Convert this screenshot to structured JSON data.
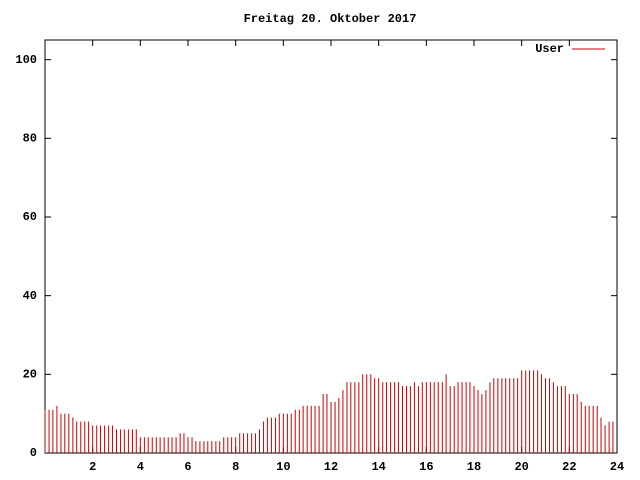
{
  "chart_data": {
    "type": "impulse",
    "title": "Freitag 20. Oktober 2017",
    "x": [
      0,
      0.17,
      0.33,
      0.5,
      0.67,
      0.83,
      1,
      1.17,
      1.33,
      1.5,
      1.67,
      1.83,
      2,
      2.17,
      2.33,
      2.5,
      2.67,
      2.83,
      3,
      3.17,
      3.33,
      3.5,
      3.67,
      3.83,
      4,
      4.17,
      4.33,
      4.5,
      4.67,
      4.83,
      5,
      5.17,
      5.33,
      5.5,
      5.67,
      5.83,
      6,
      6.17,
      6.33,
      6.5,
      6.67,
      6.83,
      7,
      7.17,
      7.33,
      7.5,
      7.67,
      7.83,
      8,
      8.17,
      8.33,
      8.5,
      8.67,
      8.83,
      9,
      9.17,
      9.33,
      9.5,
      9.67,
      9.83,
      10,
      10.17,
      10.33,
      10.5,
      10.67,
      10.83,
      11,
      11.17,
      11.33,
      11.5,
      11.67,
      11.83,
      12,
      12.17,
      12.33,
      12.5,
      12.67,
      12.83,
      13,
      13.17,
      13.33,
      13.5,
      13.67,
      13.83,
      14,
      14.17,
      14.33,
      14.5,
      14.67,
      14.83,
      15,
      15.17,
      15.33,
      15.5,
      15.67,
      15.83,
      16,
      16.17,
      16.33,
      16.5,
      16.67,
      16.83,
      17,
      17.17,
      17.33,
      17.5,
      17.67,
      17.83,
      18,
      18.17,
      18.33,
      18.5,
      18.67,
      18.83,
      19,
      19.17,
      19.33,
      19.5,
      19.67,
      19.83,
      20,
      20.17,
      20.33,
      20.5,
      20.67,
      20.83,
      21,
      21.17,
      21.33,
      21.5,
      21.67,
      21.83,
      22,
      22.17,
      22.33,
      22.5,
      22.67,
      22.83,
      23,
      23.17,
      23.33,
      23.5,
      23.67,
      23.83
    ],
    "series": [
      {
        "name": "User",
        "color": "#cc0000",
        "values": [
          11,
          11,
          11,
          12,
          10,
          10,
          10,
          9,
          8,
          8,
          8,
          8,
          7,
          7,
          7,
          7,
          7,
          7,
          6,
          6,
          6,
          6,
          6,
          6,
          4,
          4,
          4,
          4,
          4,
          4,
          4,
          4,
          4,
          4,
          5,
          5,
          4,
          4,
          3,
          3,
          3,
          3,
          3,
          3,
          3,
          4,
          4,
          4,
          4,
          5,
          5,
          5,
          5,
          5,
          6,
          8,
          9,
          9,
          9,
          10,
          10,
          10,
          10,
          11,
          11,
          12,
          12,
          12,
          12,
          12,
          15,
          15,
          13,
          13,
          14,
          16,
          18,
          18,
          18,
          18,
          20,
          20,
          20,
          19,
          19,
          18,
          18,
          18,
          18,
          18,
          17,
          17,
          17,
          18,
          17,
          18,
          18,
          18,
          18,
          18,
          18,
          20,
          17,
          17,
          18,
          18,
          18,
          18,
          17,
          16,
          15,
          16,
          18,
          19,
          19,
          19,
          19,
          19,
          19,
          19,
          21,
          21,
          21,
          21,
          21,
          20,
          19,
          19,
          18,
          17,
          17,
          17,
          15,
          15,
          15,
          13,
          12,
          12,
          12,
          12,
          9,
          7,
          8,
          8
        ]
      }
    ],
    "xlim": [
      0,
      24
    ],
    "xticks": [
      2,
      4,
      6,
      8,
      10,
      12,
      14,
      16,
      18,
      20,
      22,
      24
    ],
    "ylim": [
      0,
      105
    ],
    "yticks": [
      0,
      20,
      40,
      60,
      80,
      100
    ]
  }
}
